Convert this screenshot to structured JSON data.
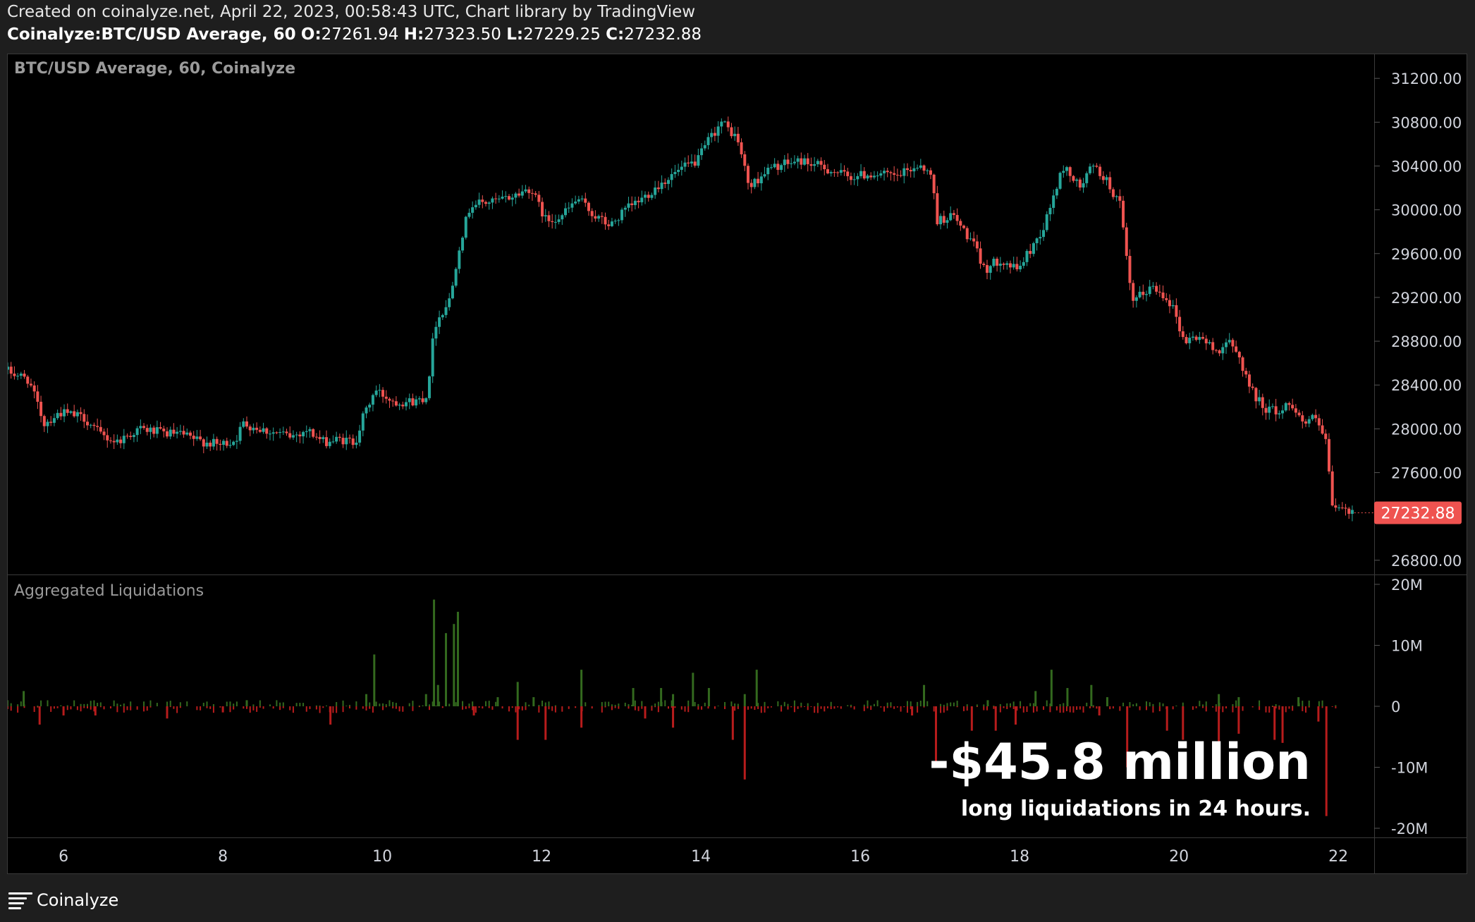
{
  "header": {
    "created_line": "Created on coinalyze.net, April 22, 2023, 00:58:43 UTC, Chart library by TradingView",
    "symbol": "Coinalyze:BTC/USD Average, 60",
    "o_label": "O:",
    "o_value": "27261.94",
    "h_label": "H:",
    "h_value": "27323.50",
    "l_label": "L:",
    "l_value": "27229.25",
    "c_label": "C:",
    "c_value": "27232.88"
  },
  "colors": {
    "up": "#26a69a",
    "down": "#ef5350",
    "liq_long": "#b71c1c",
    "liq_short": "#33691e",
    "price_badge": "#ef5350",
    "axis_text": "#d1d4dc",
    "pane_label": "#9a9a9a"
  },
  "chart_data": [
    {
      "type": "candlestick",
      "title": "BTC/USD Average, 60, Coinalyze",
      "timeframe": "60",
      "x_ticks": [
        "6",
        "8",
        "10",
        "12",
        "14",
        "16",
        "18",
        "20",
        "22"
      ],
      "xlim_days": [
        5.3,
        22.45
      ],
      "y_ticks": [
        "31200.00",
        "30800.00",
        "30400.00",
        "30000.00",
        "29600.00",
        "29200.00",
        "28800.00",
        "28400.00",
        "28000.00",
        "27600.00",
        "26800.00"
      ],
      "ylim": [
        26670,
        31420
      ],
      "last_price": "27232.88",
      "path_day_close": [
        [
          5.3,
          28540
        ],
        [
          5.6,
          28450
        ],
        [
          5.8,
          28050
        ],
        [
          6.0,
          28150
        ],
        [
          6.3,
          28100
        ],
        [
          6.5,
          27950
        ],
        [
          6.7,
          27880
        ],
        [
          7.0,
          28000
        ],
        [
          7.3,
          27960
        ],
        [
          7.5,
          27950
        ],
        [
          7.7,
          27900
        ],
        [
          8.0,
          27850
        ],
        [
          8.2,
          27900
        ],
        [
          8.3,
          28050
        ],
        [
          8.6,
          27980
        ],
        [
          8.9,
          27930
        ],
        [
          9.1,
          27990
        ],
        [
          9.3,
          27880
        ],
        [
          9.5,
          27900
        ],
        [
          9.7,
          27880
        ],
        [
          9.8,
          28100
        ],
        [
          9.95,
          28350
        ],
        [
          10.2,
          28250
        ],
        [
          10.45,
          28250
        ],
        [
          10.6,
          28300
        ],
        [
          10.7,
          28950
        ],
        [
          10.9,
          29200
        ],
        [
          11.0,
          29650
        ],
        [
          11.15,
          30050
        ],
        [
          11.5,
          30080
        ],
        [
          11.7,
          30130
        ],
        [
          11.9,
          30200
        ],
        [
          12.1,
          29900
        ],
        [
          12.3,
          29950
        ],
        [
          12.5,
          30100
        ],
        [
          12.7,
          29950
        ],
        [
          12.9,
          29850
        ],
        [
          13.1,
          30000
        ],
        [
          13.3,
          30100
        ],
        [
          13.55,
          30250
        ],
        [
          13.75,
          30350
        ],
        [
          14.0,
          30450
        ],
        [
          14.15,
          30650
        ],
        [
          14.3,
          30800
        ],
        [
          14.5,
          30650
        ],
        [
          14.65,
          30200
        ],
        [
          14.85,
          30350
        ],
        [
          15.0,
          30400
        ],
        [
          15.3,
          30450
        ],
        [
          15.6,
          30380
        ],
        [
          15.9,
          30300
        ],
        [
          16.2,
          30330
        ],
        [
          16.5,
          30300
        ],
        [
          16.8,
          30420
        ],
        [
          16.95,
          30280
        ],
        [
          17.0,
          29900
        ],
        [
          17.2,
          29950
        ],
        [
          17.45,
          29700
        ],
        [
          17.6,
          29450
        ],
        [
          17.8,
          29550
        ],
        [
          18.0,
          29450
        ],
        [
          18.15,
          29600
        ],
        [
          18.35,
          29850
        ],
        [
          18.5,
          30200
        ],
        [
          18.6,
          30400
        ],
        [
          18.8,
          30200
        ],
        [
          18.95,
          30400
        ],
        [
          19.1,
          30300
        ],
        [
          19.3,
          30050
        ],
        [
          19.45,
          29150
        ],
        [
          19.7,
          29300
        ],
        [
          19.9,
          29200
        ],
        [
          20.0,
          29050
        ],
        [
          20.1,
          28800
        ],
        [
          20.3,
          28850
        ],
        [
          20.5,
          28700
        ],
        [
          20.65,
          28800
        ],
        [
          20.8,
          28650
        ],
        [
          20.95,
          28350
        ],
        [
          21.1,
          28200
        ],
        [
          21.3,
          28150
        ],
        [
          21.45,
          28250
        ],
        [
          21.6,
          28050
        ],
        [
          21.75,
          28100
        ],
        [
          21.9,
          27850
        ],
        [
          21.95,
          27300
        ],
        [
          22.2,
          27233
        ]
      ]
    },
    {
      "type": "bar",
      "title": "Aggregated Liquidations",
      "y_ticks": [
        "20M",
        "10M",
        "0",
        "-10M",
        "-20M"
      ],
      "ylim": [
        -21500000,
        21500000
      ],
      "series_long_hint": "negative bars = long liquidations",
      "short_spikes_M": [
        [
          5.5,
          2.5
        ],
        [
          8.3,
          1
        ],
        [
          9.8,
          2
        ],
        [
          9.9,
          8.5
        ],
        [
          10.55,
          2
        ],
        [
          10.65,
          17.5
        ],
        [
          10.7,
          3.5
        ],
        [
          10.8,
          12
        ],
        [
          10.9,
          13.5
        ],
        [
          10.95,
          15.5
        ],
        [
          11.45,
          1.5
        ],
        [
          11.7,
          4
        ],
        [
          11.9,
          1.5
        ],
        [
          12.5,
          6
        ],
        [
          13.15,
          3
        ],
        [
          13.5,
          3
        ],
        [
          13.65,
          2
        ],
        [
          13.9,
          5.5
        ],
        [
          14.1,
          3
        ],
        [
          14.55,
          2
        ],
        [
          14.7,
          6
        ],
        [
          16.8,
          3.5
        ],
        [
          17.6,
          1
        ],
        [
          18.2,
          2.5
        ],
        [
          18.4,
          6
        ],
        [
          18.6,
          3
        ],
        [
          18.9,
          3.5
        ],
        [
          19.1,
          1.5
        ],
        [
          20.5,
          2
        ],
        [
          20.75,
          1.5
        ],
        [
          21.5,
          1.5
        ]
      ],
      "long_spikes_M": [
        [
          5.7,
          -3
        ],
        [
          6.0,
          -1.5
        ],
        [
          6.4,
          -1.5
        ],
        [
          7.3,
          -2
        ],
        [
          8.0,
          -1
        ],
        [
          9.35,
          -3
        ],
        [
          11.15,
          -1.5
        ],
        [
          11.7,
          -5.5
        ],
        [
          12.05,
          -5.5
        ],
        [
          12.5,
          -3.5
        ],
        [
          13.3,
          -2
        ],
        [
          13.65,
          -3.5
        ],
        [
          14.4,
          -5.5
        ],
        [
          14.55,
          -12
        ],
        [
          16.65,
          -1.5
        ],
        [
          16.95,
          -9
        ],
        [
          17.4,
          -4
        ],
        [
          17.7,
          -4
        ],
        [
          17.95,
          -3
        ],
        [
          19.0,
          -1.5
        ],
        [
          19.35,
          -10
        ],
        [
          19.85,
          -4
        ],
        [
          20.05,
          -5.5
        ],
        [
          20.5,
          -6
        ],
        [
          20.75,
          -4.5
        ],
        [
          21.2,
          -5.5
        ],
        [
          21.3,
          -6
        ],
        [
          21.75,
          -2.5
        ],
        [
          21.85,
          -18
        ]
      ]
    }
  ],
  "annotation": {
    "big": "-$45.8 million",
    "small": "long liquidations in 24 hours."
  },
  "footer": {
    "brand": "Coinalyze"
  }
}
